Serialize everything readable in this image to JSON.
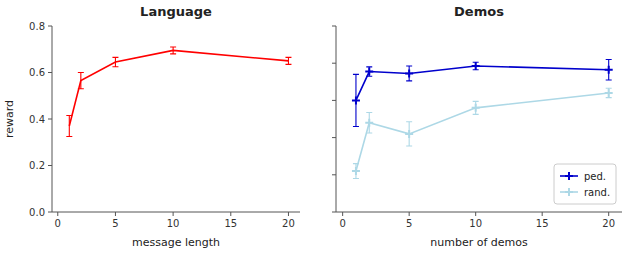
{
  "chart_data": [
    {
      "type": "line",
      "title": "Language",
      "x_label": "message length",
      "y_label": "reward",
      "x": [
        1,
        2,
        5,
        10,
        20
      ],
      "series": [
        {
          "color": "#ff0000",
          "values": [
            0.37,
            0.565,
            0.645,
            0.695,
            0.65
          ],
          "errors": [
            0.045,
            0.035,
            0.02,
            0.015,
            0.015
          ]
        }
      ],
      "xlim": [
        -0.5,
        21
      ],
      "xticks": [
        0,
        5,
        10,
        15,
        20
      ],
      "ylim": [
        0.0,
        0.8
      ],
      "yticks": [
        {
          "value": 0,
          "label": "0.0"
        },
        0.2,
        0.4,
        0.6,
        0.8
      ]
    },
    {
      "type": "line",
      "title": "Demos",
      "x_label": "number of demos",
      "x": [
        1,
        2,
        5,
        10,
        20
      ],
      "series": [
        {
          "name": "ped.",
          "color": "#0000cc",
          "marker": "plus",
          "values": [
            0.4,
            0.555,
            0.545,
            0.585,
            0.565
          ],
          "errors": [
            0.14,
            0.025,
            0.04,
            0.02,
            0.055
          ]
        },
        {
          "name": "rand.",
          "color": "#add8e6",
          "marker": "plus",
          "values": [
            0.02,
            0.28,
            0.22,
            0.36,
            0.44
          ],
          "errors": [
            0.04,
            0.055,
            0.065,
            0.035,
            0.025
          ]
        }
      ],
      "xlim": [
        -0.5,
        21
      ],
      "xticks": [
        0,
        5,
        10,
        15,
        20
      ],
      "ylim": [
        -0.2,
        0.8
      ],
      "yticks": [
        -0.2,
        0,
        0.2,
        0.4,
        0.6,
        0.8
      ],
      "tick_labels": "x",
      "legend": "lower right"
    }
  ]
}
